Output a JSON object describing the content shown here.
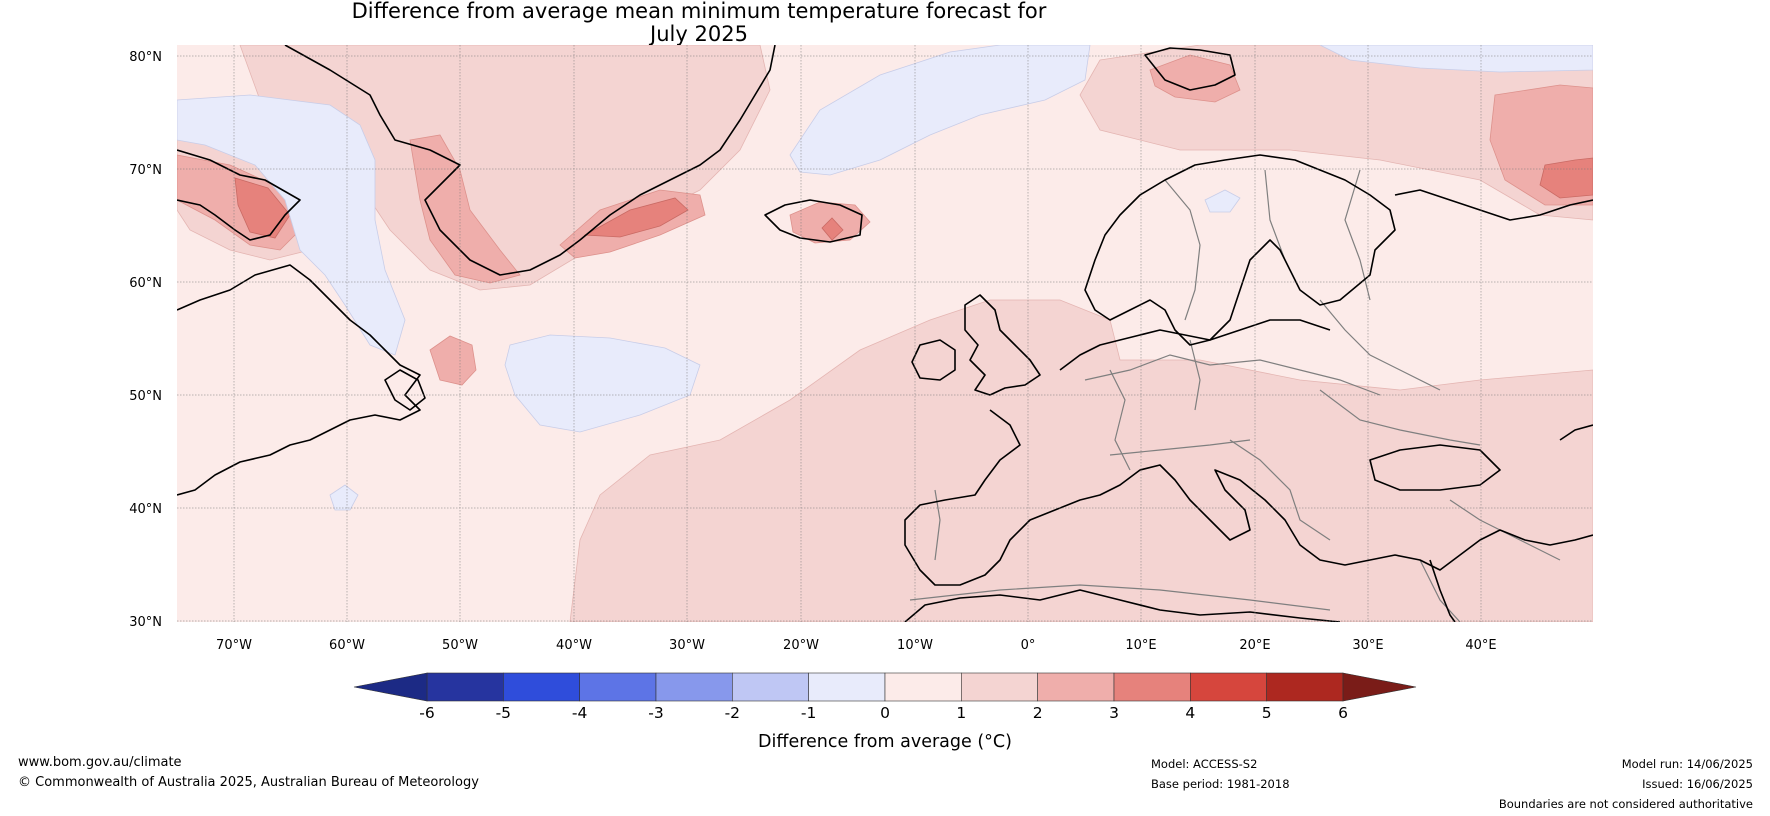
{
  "title_line1": "Difference from average mean minimum temperature forecast for",
  "title_line2": "July 2025",
  "lat_labels": [
    "80°N",
    "70°N",
    "60°N",
    "50°N",
    "40°N",
    "30°N"
  ],
  "lon_labels": [
    "70°W",
    "60°W",
    "50°W",
    "40°W",
    "30°W",
    "20°W",
    "10°W",
    "0°",
    "10°E",
    "20°E",
    "30°E",
    "40°E"
  ],
  "colorbar": {
    "ticks": [
      "-6",
      "-5",
      "-4",
      "-3",
      "-2",
      "-1",
      "0",
      "1",
      "2",
      "3",
      "4",
      "5",
      "6"
    ],
    "colors": [
      "#26349f",
      "#2f4ddb",
      "#5d74e6",
      "#8798ec",
      "#bfc7f4",
      "#e8ebfb",
      "#fcebe9",
      "#f4d4d2",
      "#efaeab",
      "#e6827c",
      "#d6463d",
      "#ad2820"
    ],
    "under_color": "#1c2a85",
    "over_color": "#7a1c18",
    "label": "Difference from average (°C)"
  },
  "colors": {
    "ocean_base": "#fcebe9",
    "warm_1_2": "#f4d4d2",
    "warm_2_3": "#efaeab",
    "warm_3_4": "#e6827c",
    "cool_0_1": "#e8ebfb",
    "coastline": "#000000",
    "borders": "#7f7f7f"
  },
  "footer": {
    "website": "www.bom.gov.au/climate",
    "copyright": "© Commonwealth of Australia 2025, Australian Bureau of Meteorology",
    "model": "Model: ACCESS-S2",
    "base_period": "Base period: 1981-2018",
    "model_run": "Model run: 14/06/2025",
    "issued": "Issued: 16/06/2025",
    "disclaimer": "Boundaries are not considered authoritative"
  }
}
